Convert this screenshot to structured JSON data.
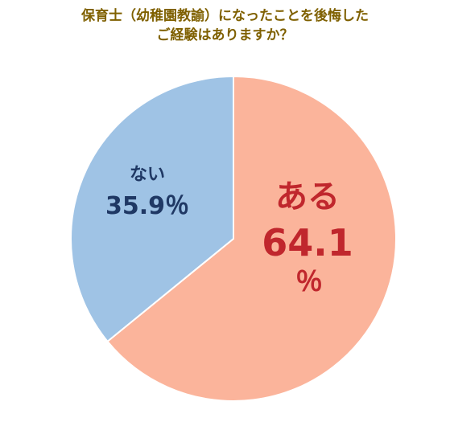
{
  "chart_data": {
    "type": "pie",
    "title_lines": [
      "保育士（幼稚園教諭）になったことを後悔した",
      "ご経験はありますか？"
    ],
    "slices": [
      {
        "label": "ある",
        "value": 64.1,
        "value_text": "64.1",
        "unit": "％",
        "color": "#fbb49b",
        "label_color": "#c0272d"
      },
      {
        "label": "ない",
        "value": 35.9,
        "value_text": "35.9％",
        "color": "#9fc3e5",
        "label_color": "#1f3864"
      }
    ],
    "legend": "none",
    "start": "top",
    "direction": "clockwise"
  }
}
